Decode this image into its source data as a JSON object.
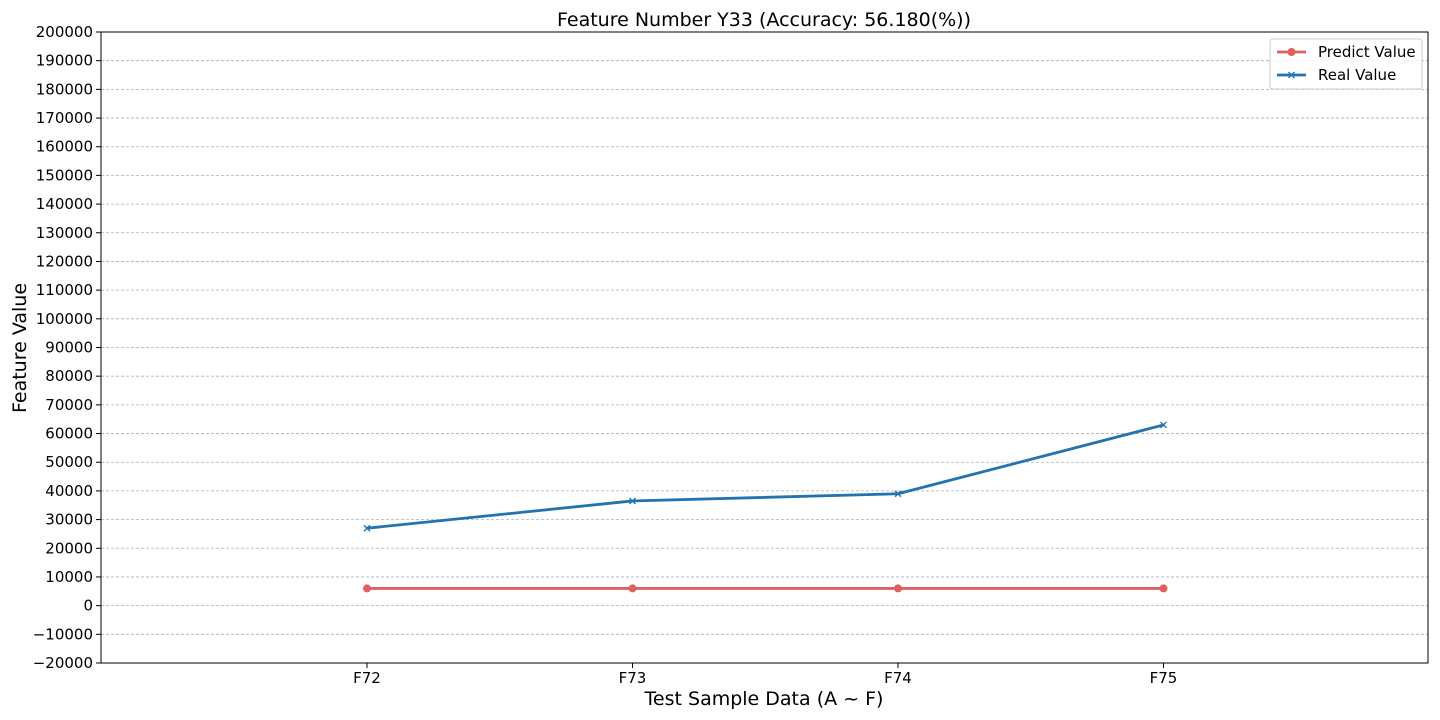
{
  "chart_data": {
    "type": "line",
    "title": "Feature Number Y33 (Accuracy: 56.180(%))",
    "xlabel": "Test Sample Data (A ~ F)",
    "ylabel": "Feature Value",
    "categories": [
      "F72",
      "F73",
      "F74",
      "F75"
    ],
    "ylim": [
      -20000,
      200000
    ],
    "yticks": [
      -20000,
      -10000,
      0,
      10000,
      20000,
      30000,
      40000,
      50000,
      60000,
      70000,
      80000,
      90000,
      100000,
      110000,
      120000,
      130000,
      140000,
      150000,
      160000,
      170000,
      180000,
      190000,
      200000
    ],
    "grid": "y",
    "legend_position": "top-right",
    "series": [
      {
        "name": "Predict Value",
        "values": [
          6000,
          6000,
          6000,
          6000
        ],
        "color": "#e06060",
        "marker": "circle"
      },
      {
        "name": "Real Value",
        "values": [
          27000,
          36500,
          39000,
          63000
        ],
        "color": "#2273b0",
        "marker": "x"
      }
    ]
  }
}
